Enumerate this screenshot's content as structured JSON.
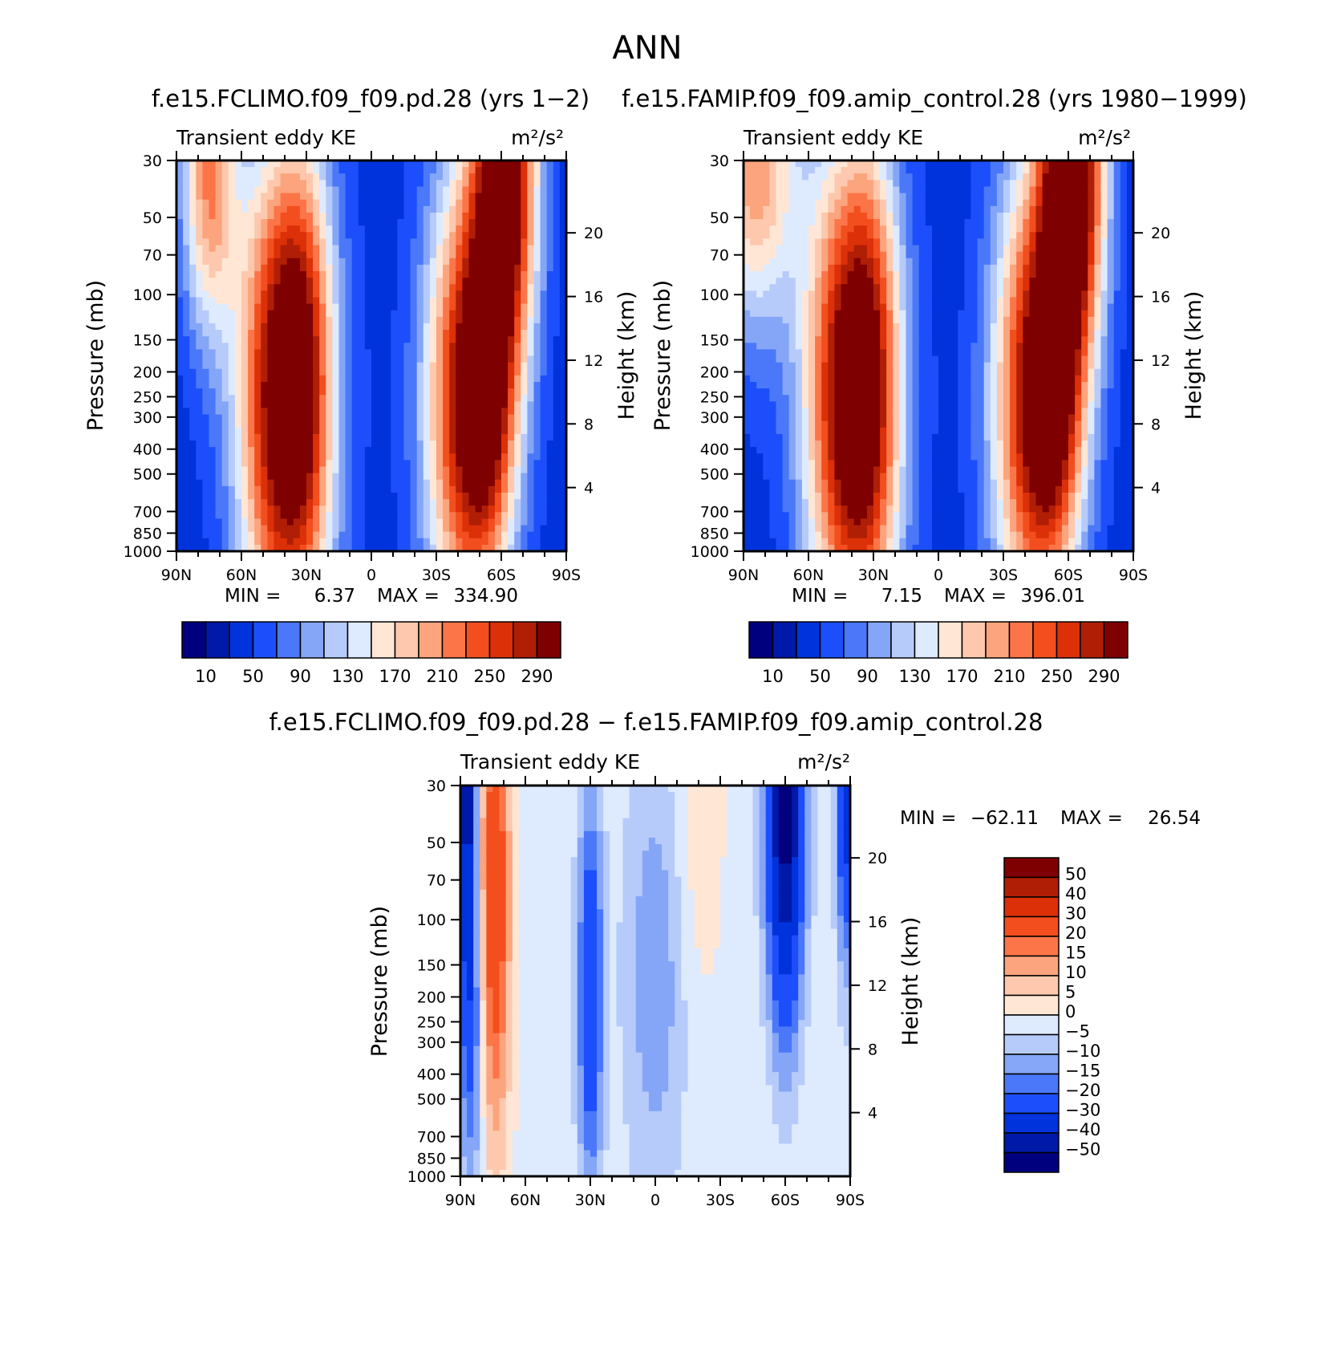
{
  "page_title": "ANN",
  "chart_data": [
    {
      "type": "heatmap",
      "id": "left",
      "title": "f.e15.FCLIMO.f09_f09.pd.28 (yrs 1−2)",
      "left_label": "Transient eddy KE",
      "units_label": "m²/s²",
      "ylabel": "Pressure (mb)",
      "ylabel_right": "Height (km)",
      "x_ticks": [
        "90N",
        "60N",
        "30N",
        "0",
        "30S",
        "60S",
        "90S"
      ],
      "x_values": [
        90,
        60,
        30,
        0,
        -30,
        -60,
        -90
      ],
      "y_ticks": [
        "30",
        "50",
        "70",
        "100",
        "150",
        "200",
        "250",
        "300",
        "400",
        "500",
        "700",
        "850",
        "1000"
      ],
      "y_values": [
        30,
        50,
        70,
        100,
        150,
        200,
        250,
        300,
        400,
        500,
        700,
        850,
        1000
      ],
      "height_ticks": [
        "20",
        "16",
        "12",
        "8",
        "4"
      ],
      "height_values": [
        20,
        16,
        12,
        8,
        4
      ],
      "ylim": [
        1000,
        30
      ],
      "min_label": "MIN =",
      "min_value": "6.37",
      "max_label": "MAX =",
      "max_value": "334.90",
      "colorbar_labels": [
        "10",
        "50",
        "90",
        "130",
        "170",
        "210",
        "250",
        "290"
      ],
      "colorbar_levels": [
        10,
        30,
        50,
        70,
        90,
        110,
        130,
        150,
        170,
        190,
        210,
        230,
        250,
        270,
        290
      ],
      "colorbar_colors": [
        "#00007f",
        "#0019a8",
        "#0033dc",
        "#1c4ffb",
        "#4a78f8",
        "#85a6f7",
        "#b6cbfa",
        "#deeafe",
        "#ffe6d5",
        "#fdc8ad",
        "#fba47d",
        "#fb7548",
        "#f24e1e",
        "#db3008",
        "#b01e06",
        "#7f0000"
      ],
      "features": [
        {
          "lat": 75,
          "p": 35,
          "amp": 170,
          "slat": 9,
          "sz": 0.28
        },
        {
          "lat": 40,
          "p": 250,
          "amp": 305,
          "slat": 15,
          "sz": 0.45
        },
        {
          "lat": 30,
          "p": 180,
          "amp": 60,
          "slat": 8,
          "sz": 0.4
        },
        {
          "lat": -45,
          "p": 260,
          "amp": 270,
          "slat": 14,
          "sz": 0.42
        },
        {
          "lat": -55,
          "p": 300,
          "amp": 80,
          "slat": 8,
          "sz": 0.25
        },
        {
          "lat": -62,
          "p": 30,
          "amp": 300,
          "slat": 10,
          "sz": 0.35
        }
      ]
    },
    {
      "type": "heatmap",
      "id": "right",
      "title": "f.e15.FAMIP.f09_f09.amip_control.28 (yrs 1980−1999)",
      "left_label": "Transient eddy KE",
      "units_label": "m²/s²",
      "ylabel": "Pressure (mb)",
      "ylabel_right": "Height (km)",
      "x_ticks": [
        "90N",
        "60N",
        "30N",
        "0",
        "30S",
        "60S",
        "90S"
      ],
      "x_values": [
        90,
        60,
        30,
        0,
        -30,
        -60,
        -90
      ],
      "y_ticks": [
        "30",
        "50",
        "70",
        "100",
        "150",
        "200",
        "250",
        "300",
        "400",
        "500",
        "700",
        "850",
        "1000"
      ],
      "y_values": [
        30,
        50,
        70,
        100,
        150,
        200,
        250,
        300,
        400,
        500,
        700,
        850,
        1000
      ],
      "height_ticks": [
        "20",
        "16",
        "12",
        "8",
        "4"
      ],
      "height_values": [
        20,
        16,
        12,
        8,
        4
      ],
      "ylim": [
        1000,
        30
      ],
      "min_label": "MIN =",
      "min_value": "7.15",
      "max_label": "MAX =",
      "max_value": "396.01",
      "colorbar_labels": [
        "10",
        "50",
        "90",
        "130",
        "170",
        "210",
        "250",
        "290"
      ],
      "colorbar_levels": [
        10,
        30,
        50,
        70,
        90,
        110,
        130,
        150,
        170,
        190,
        210,
        230,
        250,
        270,
        290
      ],
      "colorbar_colors": [
        "#00007f",
        "#0019a8",
        "#0033dc",
        "#1c4ffb",
        "#4a78f8",
        "#85a6f7",
        "#b6cbfa",
        "#deeafe",
        "#ffe6d5",
        "#fdc8ad",
        "#fba47d",
        "#fb7548",
        "#f24e1e",
        "#db3008",
        "#b01e06",
        "#7f0000"
      ],
      "features": [
        {
          "lat": 85,
          "p": 30,
          "amp": 170,
          "slat": 14,
          "sz": 0.3
        },
        {
          "lat": 40,
          "p": 250,
          "amp": 300,
          "slat": 15,
          "sz": 0.45
        },
        {
          "lat": 30,
          "p": 180,
          "amp": 60,
          "slat": 8,
          "sz": 0.4
        },
        {
          "lat": -45,
          "p": 260,
          "amp": 270,
          "slat": 14,
          "sz": 0.42
        },
        {
          "lat": -55,
          "p": 300,
          "amp": 80,
          "slat": 8,
          "sz": 0.25
        },
        {
          "lat": -62,
          "p": 30,
          "amp": 330,
          "slat": 10,
          "sz": 0.35
        }
      ]
    },
    {
      "type": "heatmap",
      "id": "diff",
      "title": "f.e15.FCLIMO.f09_f09.pd.28 − f.e15.FAMIP.f09_f09.amip_control.28",
      "left_label": "Transient eddy KE",
      "units_label": "m²/s²",
      "ylabel": "Pressure (mb)",
      "ylabel_right": "Height (km)",
      "x_ticks": [
        "90N",
        "60N",
        "30N",
        "0",
        "30S",
        "60S",
        "90S"
      ],
      "x_values": [
        90,
        60,
        30,
        0,
        -30,
        -60,
        -90
      ],
      "y_ticks": [
        "30",
        "50",
        "70",
        "100",
        "150",
        "200",
        "250",
        "300",
        "400",
        "500",
        "700",
        "850",
        "1000"
      ],
      "y_values": [
        30,
        50,
        70,
        100,
        150,
        200,
        250,
        300,
        400,
        500,
        700,
        850,
        1000
      ],
      "height_ticks": [
        "20",
        "16",
        "12",
        "8",
        "4"
      ],
      "height_values": [
        20,
        16,
        12,
        8,
        4
      ],
      "ylim": [
        1000,
        30
      ],
      "min_label": "MIN =",
      "min_value": "−62.11",
      "max_label": "MAX =",
      "max_value": "26.54",
      "colorbar_labels": [
        "50",
        "40",
        "30",
        "20",
        "15",
        "10",
        "5",
        "0",
        "−5",
        "−10",
        "−15",
        "−20",
        "−30",
        "−40",
        "−50"
      ],
      "colorbar_levels": [
        -50,
        -40,
        -30,
        -20,
        -15,
        -10,
        -5,
        0,
        5,
        10,
        15,
        20,
        30,
        40,
        50
      ],
      "colorbar_colors": [
        "#00007f",
        "#0019a8",
        "#0033dc",
        "#1c4ffb",
        "#4a78f8",
        "#85a6f7",
        "#b6cbfa",
        "#deeafe",
        "#ffe6d5",
        "#fdc8ad",
        "#fba47d",
        "#fb7548",
        "#f24e1e",
        "#db3008",
        "#b01e06",
        "#7f0000"
      ],
      "features": [
        {
          "lat": 87,
          "p": 30,
          "amp": -45,
          "slat": 3,
          "sz": 0.5
        },
        {
          "lat": 74,
          "p": 80,
          "amp": 30,
          "slat": 5,
          "sz": 0.45
        },
        {
          "lat": 83,
          "p": 300,
          "amp": -12,
          "slat": 3,
          "sz": 0.3
        },
        {
          "lat": 30,
          "p": 190,
          "amp": -28,
          "slat": 4,
          "sz": 0.35
        },
        {
          "lat": 0,
          "p": 160,
          "amp": -12,
          "slat": 10,
          "sz": 0.4
        },
        {
          "lat": -60,
          "p": 30,
          "amp": -55,
          "slat": 6,
          "sz": 0.45
        },
        {
          "lat": -88,
          "p": 30,
          "amp": -35,
          "slat": 3,
          "sz": 0.3
        },
        {
          "lat": -20,
          "p": 40,
          "amp": 6,
          "slat": 8,
          "sz": 0.35
        },
        {
          "lat": -60,
          "p": 600,
          "amp": 4,
          "slat": 10,
          "sz": 0.3
        }
      ]
    }
  ]
}
